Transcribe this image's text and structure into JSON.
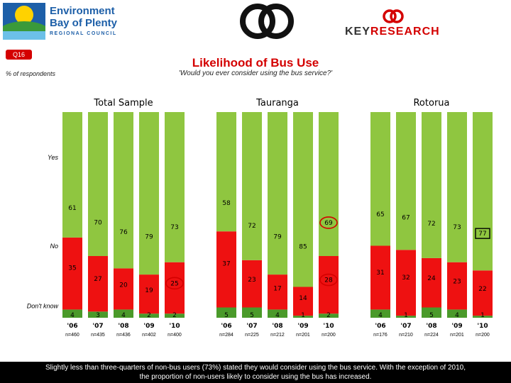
{
  "header": {
    "logo_line1": "Environment",
    "logo_line2": "Bay of Plenty",
    "logo_line3": "REGIONAL COUNCIL",
    "brand_part1": "KEY",
    "brand_part2": "RESEARCH"
  },
  "question_tag": "Q16",
  "unit_label": "% of respondents",
  "colors": {
    "yes": "#8fc640",
    "no": "#ee1111",
    "dont_know": "#4a9a2a",
    "accent": "#d40000"
  },
  "chart_data": {
    "type": "bar",
    "stacked": true,
    "title": "Likelihood of Bus Use",
    "subtitle": "'Would you ever consider using the bus service?'",
    "ylim": [
      0,
      100
    ],
    "grid": false,
    "row_labels": [
      "Yes",
      "No",
      "Don't know"
    ],
    "panels": [
      {
        "title": "Total Sample",
        "categories": [
          "'06",
          "'07",
          "'08",
          "'09",
          "'10"
        ],
        "n_labels": [
          "n=460",
          "n=435",
          "n=436",
          "n=402",
          "n=400"
        ],
        "series": [
          {
            "name": "Yes",
            "values": [
              61,
              70,
              76,
              79,
              73
            ],
            "labels": [
              "61",
              "70",
              "76",
              "79",
              "73"
            ]
          },
          {
            "name": "No",
            "values": [
              35,
              27,
              20,
              19,
              25
            ],
            "labels": [
              "35",
              "27",
              "20",
              "19",
              "25"
            ]
          },
          {
            "name": "Don't know",
            "values": [
              4,
              3,
              4,
              2,
              2
            ],
            "labels": [
              "4",
              "3",
              "4",
              "2",
              "2"
            ]
          }
        ],
        "highlight": [
          {
            "series": 1,
            "index": 4,
            "style": "circle"
          }
        ]
      },
      {
        "title": "Tauranga",
        "categories": [
          "'06",
          "'07",
          "'08",
          "'09",
          "'10"
        ],
        "n_labels": [
          "n=284",
          "n=225",
          "n=212",
          "n=201",
          "n=200"
        ],
        "series": [
          {
            "name": "Yes",
            "values": [
              58,
              72,
              79,
              85,
              69
            ],
            "labels": [
              "58",
              "72",
              "79",
              "85",
              "69"
            ]
          },
          {
            "name": "No",
            "values": [
              37,
              23,
              17,
              14,
              28
            ],
            "labels": [
              "37",
              "23",
              "17",
              "14",
              "28"
            ]
          },
          {
            "name": "Don't know",
            "values": [
              5,
              5,
              4,
              1,
              2
            ],
            "labels": [
              "5",
              "5",
              "4",
              "1",
              "2"
            ]
          }
        ],
        "highlight": [
          {
            "series": 0,
            "index": 4,
            "style": "circle"
          },
          {
            "series": 1,
            "index": 4,
            "style": "circle"
          }
        ]
      },
      {
        "title": "Rotorua",
        "categories": [
          "'06",
          "'07",
          "'08",
          "'09",
          "'10"
        ],
        "n_labels": [
          "n=176",
          "n=210",
          "n=224",
          "n=201",
          "n=200"
        ],
        "series": [
          {
            "name": "Yes",
            "values": [
              65,
              67,
              72,
              73,
              77
            ],
            "labels": [
              "65",
              "67",
              "72",
              "73",
              "77"
            ]
          },
          {
            "name": "No",
            "values": [
              31,
              32,
              24,
              23,
              22
            ],
            "labels": [
              "31",
              "32",
              "24",
              "23",
              "22"
            ]
          },
          {
            "name": "Don't know",
            "values": [
              4,
              1,
              5,
              4,
              1
            ],
            "labels": [
              "4",
              "1",
              "5",
              "4",
              "1"
            ]
          }
        ],
        "highlight": [
          {
            "series": 0,
            "index": 4,
            "style": "box"
          }
        ]
      }
    ]
  },
  "footer": {
    "line1": "Slightly less than three-quarters of non-bus users (73%) stated they would consider using the bus service. With the exception of 2010,",
    "line2": "the proportion of non-users likely to consider using the bus has increased."
  }
}
